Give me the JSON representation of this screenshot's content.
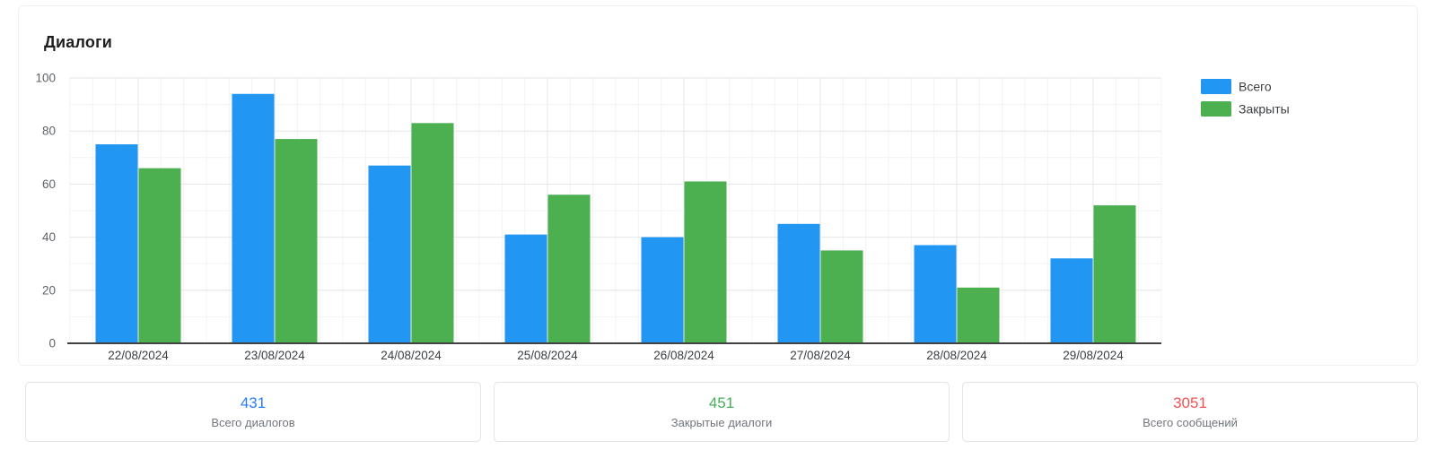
{
  "panel": {
    "title": "Диалоги"
  },
  "chart_data": {
    "type": "bar",
    "categories": [
      "22/08/2024",
      "23/08/2024",
      "24/08/2024",
      "25/08/2024",
      "26/08/2024",
      "27/08/2024",
      "28/08/2024",
      "29/08/2024"
    ],
    "series": [
      {
        "name": "Всего",
        "color": "#2196f3",
        "values": [
          75,
          94,
          67,
          41,
          40,
          45,
          37,
          32
        ]
      },
      {
        "name": "Закрыты",
        "color": "#4caf50",
        "values": [
          66,
          77,
          83,
          56,
          61,
          35,
          21,
          52
        ]
      }
    ],
    "title": "Диалоги",
    "xlabel": "",
    "ylabel": "",
    "ylim": [
      0,
      100
    ],
    "yticks": [
      0,
      20,
      40,
      60,
      80,
      100
    ],
    "grid": "horizontal minor every 10 / major every 20; vertical minor 6 per category, major at category centers",
    "legend_position": "top-right",
    "colors": {
      "grid_minor": "#f3f3f3",
      "grid_major": "#e6e6e6",
      "axis_line": "#424242",
      "x_tick_text": "#3c4043",
      "y_tick_text": "#5f6368",
      "legend_text": "#3c4043"
    }
  },
  "summary_cards": [
    {
      "value": "431",
      "label": "Всего диалогов",
      "color": "#2b7cf7"
    },
    {
      "value": "451",
      "label": "Закрытые диалоги",
      "color": "#47ad57"
    },
    {
      "value": "3051",
      "label": "Всего сообщений",
      "color": "#f05452"
    }
  ]
}
